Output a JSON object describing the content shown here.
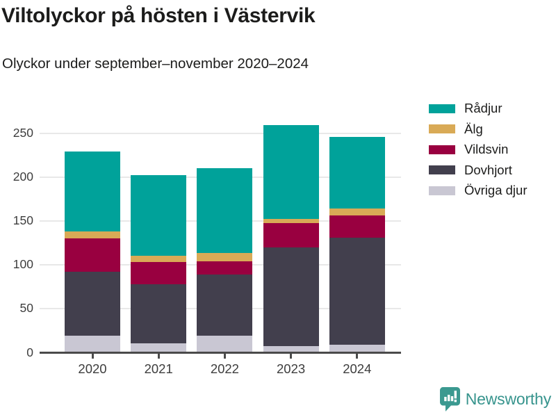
{
  "header": {
    "title": "Viltolyckor på hösten i Västervik",
    "subtitle": "Olyckor under september–november 2020–2024"
  },
  "chart_data": {
    "type": "bar",
    "stacked": true,
    "title": "Viltolyckor på hösten i Västervik",
    "subtitle": "Olyckor under september–november 2020–2024",
    "categories": [
      "2020",
      "2021",
      "2022",
      "2023",
      "2024"
    ],
    "series": [
      {
        "name": "Övriga djur",
        "color": "#c9c7d3",
        "values": [
          19,
          10,
          19,
          7,
          9
        ]
      },
      {
        "name": "Dovhjort",
        "color": "#423f4d",
        "values": [
          73,
          68,
          70,
          113,
          122
        ]
      },
      {
        "name": "Vildsvin",
        "color": "#990040",
        "values": [
          38,
          25,
          15,
          27,
          25
        ]
      },
      {
        "name": "Älg",
        "color": "#d9aa56",
        "values": [
          8,
          7,
          9,
          5,
          8
        ]
      },
      {
        "name": "Rådjur",
        "color": "#00a29a",
        "values": [
          91,
          92,
          97,
          107,
          82
        ]
      }
    ],
    "totals": [
      229,
      202,
      210,
      259,
      246
    ],
    "xlabel": "",
    "ylabel": "",
    "yticks": [
      0,
      50,
      100,
      150,
      200,
      250
    ],
    "ylim": [
      0,
      267
    ],
    "grid": true,
    "legend_position": "right-top",
    "legend_order": [
      "Rådjur",
      "Älg",
      "Vildsvin",
      "Dovhjort",
      "Övriga djur"
    ]
  },
  "footer": {
    "brand": "Newsworthy",
    "brand_color": "#37948d",
    "logo_icon": "bar-chart-speech-bubble-icon"
  }
}
